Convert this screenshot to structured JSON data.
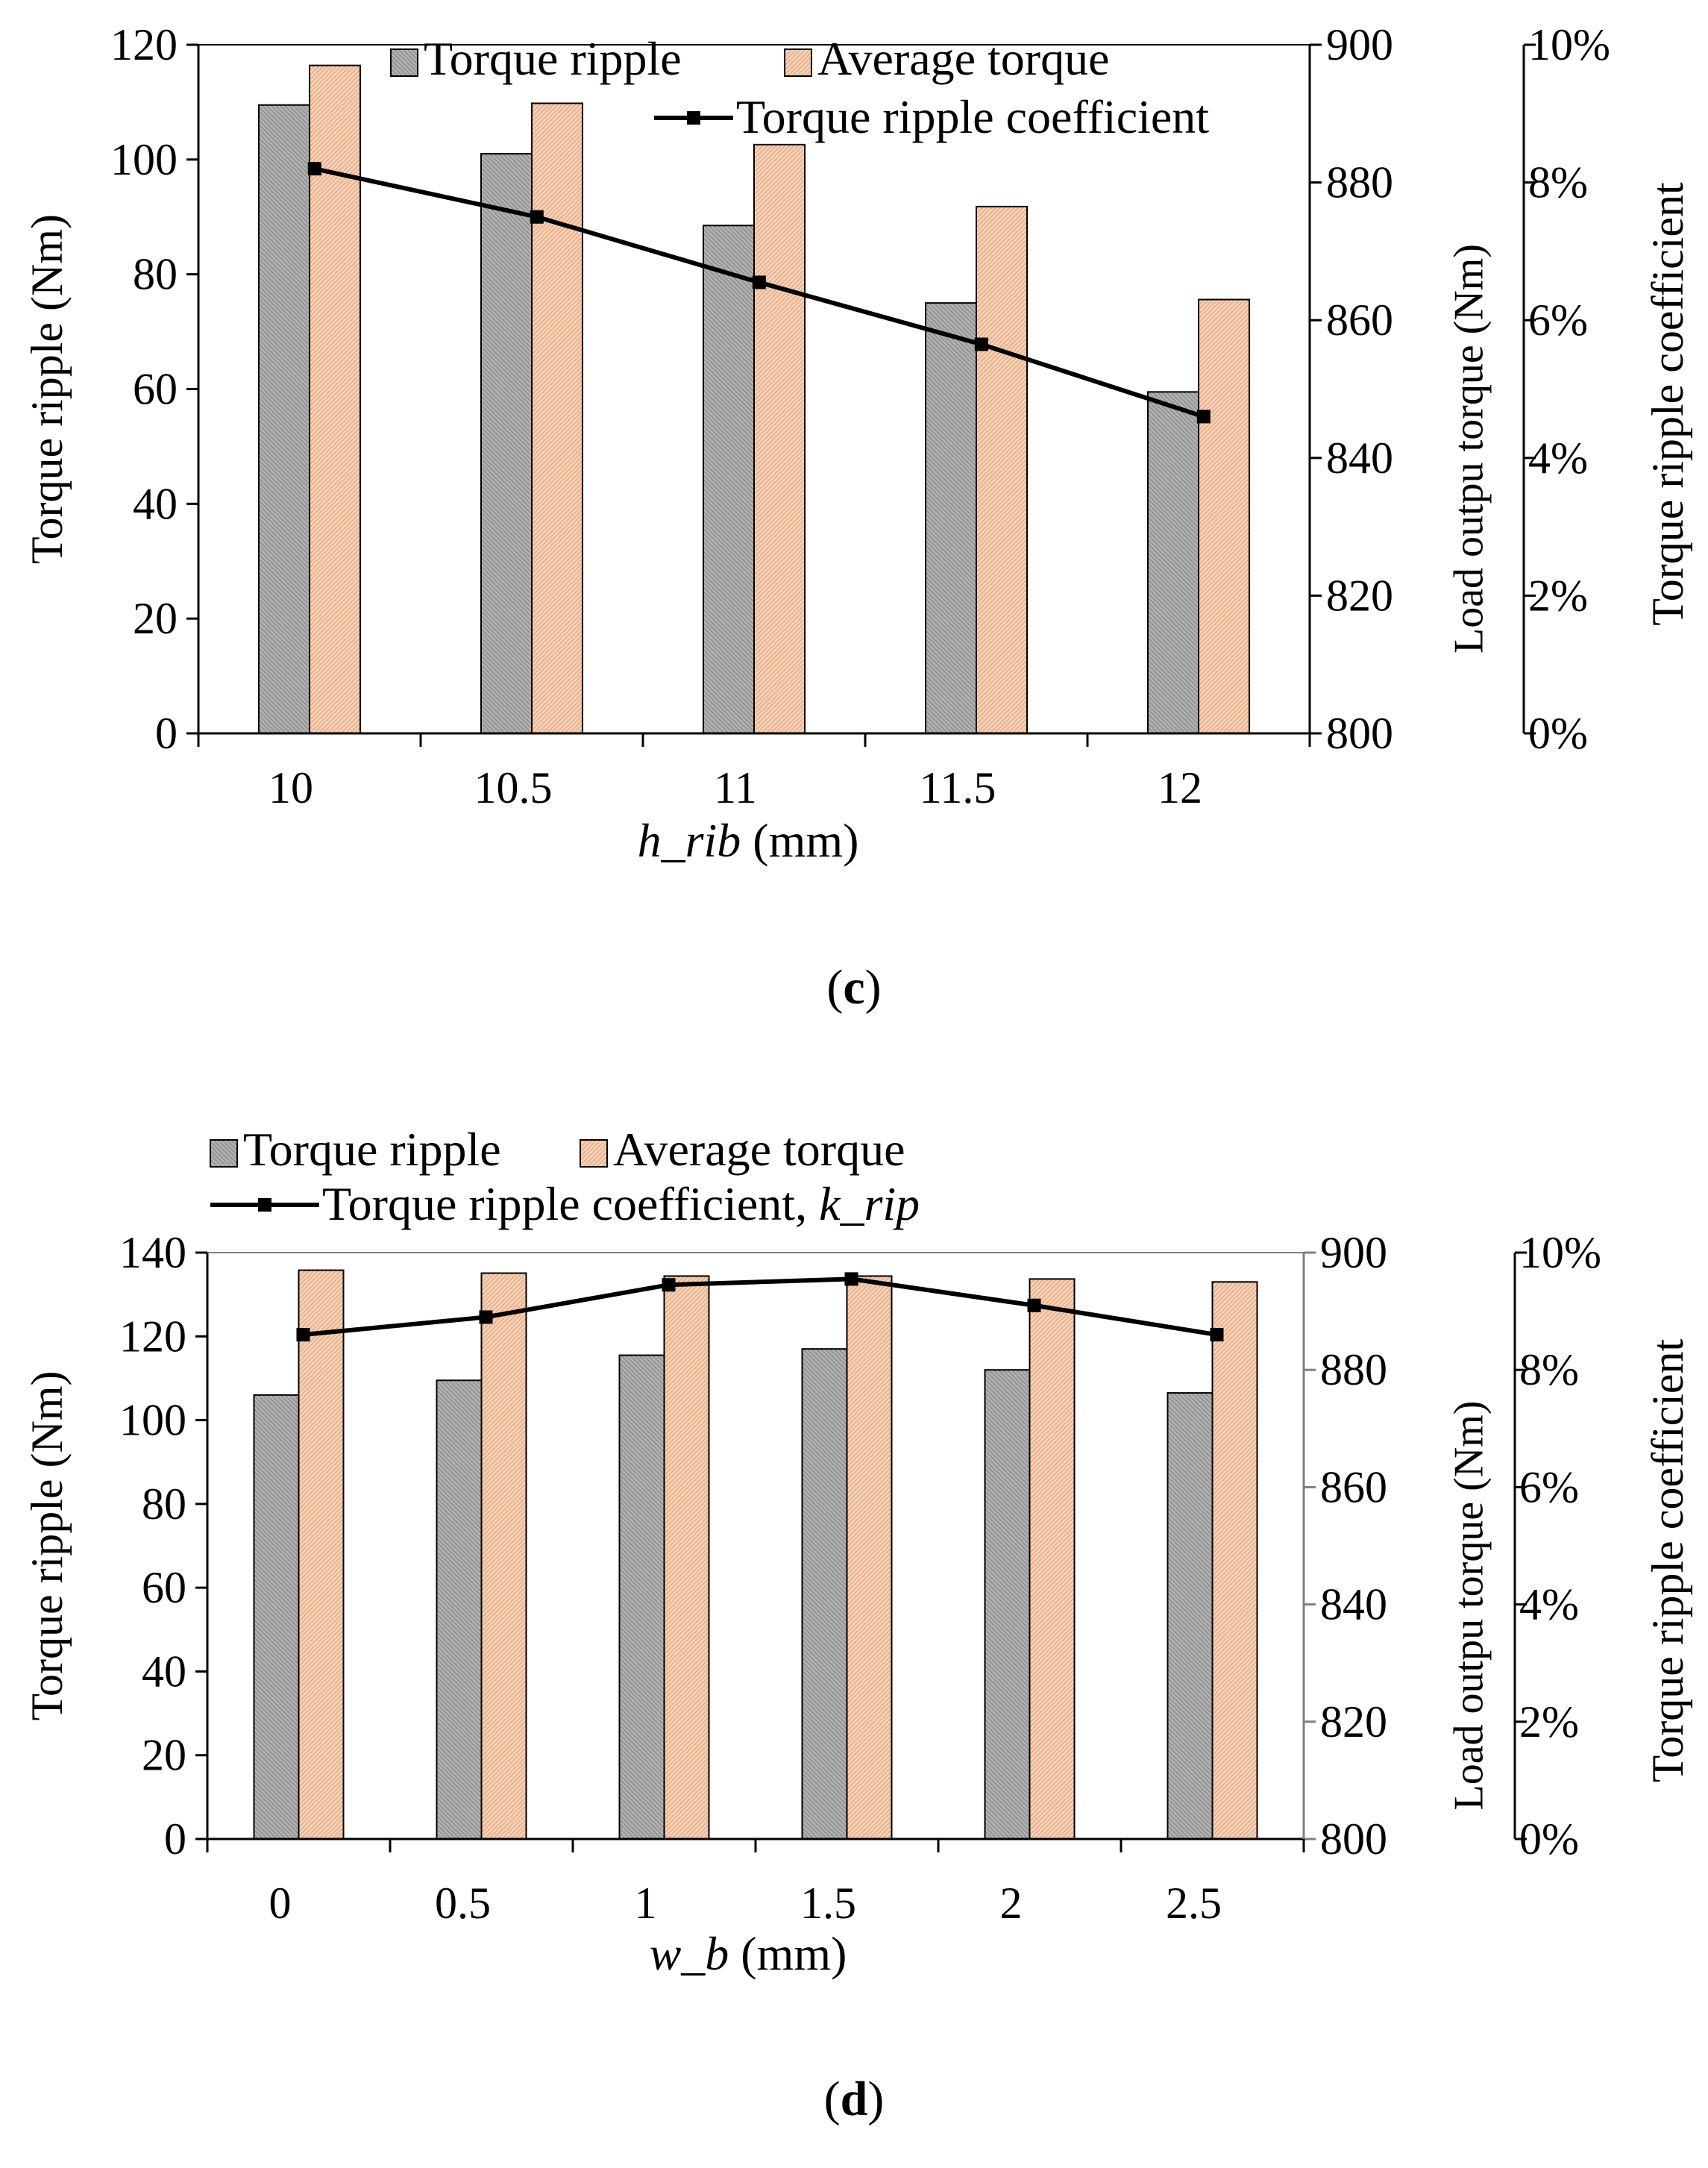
{
  "chart_data": [
    {
      "panel": "(c)",
      "panel_letter": "c",
      "type": "bar+line",
      "categories": [
        "10",
        "10.5",
        "11",
        "11.5",
        "12"
      ],
      "xlabel_var": "h_rib",
      "xlabel_unit": " (mm)",
      "ylabel_left": "Torque ripple (Nm)",
      "ylabel_mid": "Load outpu torque (Nm)",
      "ylabel_right": "Torque ripple coefficient",
      "ylim_left": [
        0,
        120
      ],
      "ylim_mid": [
        800,
        900
      ],
      "ylim_right": [
        0,
        0.1
      ],
      "yticks_left": [
        "0",
        "20",
        "40",
        "60",
        "80",
        "100",
        "120"
      ],
      "yticks_mid": [
        "800",
        "820",
        "840",
        "860",
        "880",
        "900"
      ],
      "yticks_right": [
        "0%",
        "2%",
        "4%",
        "6%",
        "8%",
        "10%"
      ],
      "legend": {
        "ripple": "Torque ripple",
        "average": "Average torque",
        "coef": "Torque ripple coefficient",
        "coef_var": ""
      },
      "series": [
        {
          "name": "Torque ripple",
          "axis": "left",
          "values": [
            109.5,
            101,
            88.5,
            75,
            59.5
          ]
        },
        {
          "name": "Average torque",
          "axis": "mid",
          "values": [
            897,
            891.5,
            885.5,
            876.5,
            863
          ]
        },
        {
          "name": "Torque ripple coefficient",
          "axis": "right",
          "values": [
            0.082,
            0.075,
            0.0655,
            0.0565,
            0.046
          ]
        }
      ]
    },
    {
      "panel": "(d)",
      "panel_letter": "d",
      "type": "bar+line",
      "categories": [
        "0",
        "0.5",
        "1",
        "1.5",
        "2",
        "2.5"
      ],
      "xlabel_var": "w_b",
      "xlabel_unit": " (mm)",
      "ylabel_left": "Torque ripple (Nm)",
      "ylabel_mid": "Load outpu torque (Nm)",
      "ylabel_right": "Torque ripple coefficient",
      "ylim_left": [
        0,
        140
      ],
      "ylim_mid": [
        800,
        900
      ],
      "ylim_right": [
        0,
        0.1
      ],
      "yticks_left": [
        "0",
        "20",
        "40",
        "60",
        "80",
        "100",
        "120",
        "140"
      ],
      "yticks_mid": [
        "800",
        "820",
        "840",
        "860",
        "880",
        "900"
      ],
      "yticks_right": [
        "0%",
        "2%",
        "4%",
        "6%",
        "8%",
        "10%"
      ],
      "legend": {
        "ripple": "Torque ripple",
        "average": "Average torque",
        "coef": "Torque ripple coefficient, ",
        "coef_var": "k_rip"
      },
      "series": [
        {
          "name": "Torque ripple",
          "axis": "left",
          "values": [
            106,
            109.5,
            115.5,
            117,
            112,
            106.5
          ]
        },
        {
          "name": "Average torque",
          "axis": "mid",
          "values": [
            897,
            896.5,
            896,
            896,
            895.5,
            895
          ]
        },
        {
          "name": "Torque ripple coefficient",
          "axis": "right",
          "values": [
            0.086,
            0.089,
            0.0945,
            0.0955,
            0.091,
            0.086
          ]
        }
      ]
    }
  ]
}
